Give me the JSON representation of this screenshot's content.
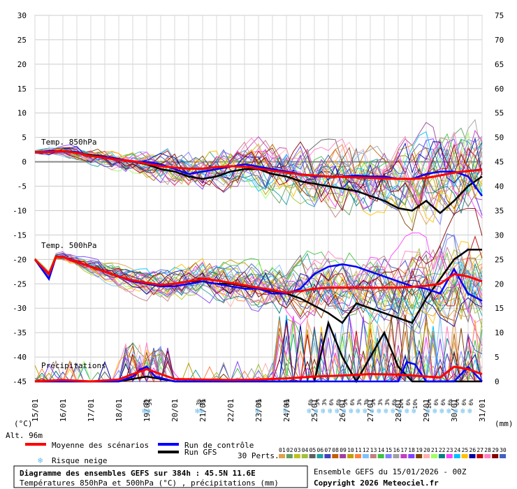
{
  "chart_data": {
    "type": "line",
    "title": "Diagramme des ensembles GEFS sur 384h : 45.5N 11.6E",
    "subtitle": "Températures 850hPa et 500hPa (°C) , précipitations (mm)",
    "run_info": "Ensemble GEFS du 15/01/2026 - 00Z",
    "copyright": "Copyright 2026 Meteociel.fr",
    "altitude": "Alt. 96m",
    "left_axis_unit": "(°C)",
    "right_axis_unit": "(mm)",
    "left_axis_ticks": [
      30,
      25,
      20,
      15,
      10,
      5,
      0,
      -5,
      -10,
      -15,
      -20,
      -25,
      -30,
      -35,
      -40,
      -45
    ],
    "right_axis_ticks": [
      75,
      70,
      65,
      60,
      55,
      50,
      45,
      40,
      35,
      30,
      25,
      20,
      15,
      10,
      5,
      0
    ],
    "ylim_temp": [
      -45,
      30
    ],
    "ylim_precip": [
      0,
      75
    ],
    "x_days": [
      "15/01",
      "16/01",
      "17/01",
      "18/01",
      "19/01",
      "20/01",
      "21/01",
      "22/01",
      "23/01",
      "24/01",
      "25/01",
      "26/01",
      "27/01",
      "28/01",
      "29/01",
      "30/01",
      "31/01"
    ],
    "x_day_index": [
      0,
      1,
      2,
      3,
      4,
      5,
      6,
      7,
      8,
      9,
      10,
      11,
      12,
      13,
      14,
      15,
      16
    ],
    "panel_labels": {
      "t850": "Temp. 850hPa",
      "t500": "Temp. 500hPa",
      "precip": "Précipitations"
    },
    "grid": true,
    "legend_position": "bottom",
    "legend": {
      "mean": "Moyenne des scénarios",
      "control": "Run de contrôle",
      "gfs": "Run GFS",
      "snow": "Risque neige",
      "perts": "30 Perts."
    },
    "colors": {
      "mean": "#ff0000",
      "control": "#0000ff",
      "gfs": "#000000",
      "snow": "#66bbee"
    },
    "pert_labels": [
      "01",
      "02",
      "03",
      "04",
      "05",
      "06",
      "07",
      "08",
      "09",
      "10",
      "11",
      "12",
      "13",
      "14",
      "15",
      "16",
      "17",
      "18",
      "19",
      "20",
      "21",
      "22",
      "23",
      "24",
      "25",
      "26",
      "27",
      "28",
      "29",
      "30"
    ],
    "pert_colors": [
      "#e0a050",
      "#60a060",
      "#c0c020",
      "#a0c040",
      "#606060",
      "#20a0a0",
      "#4040c0",
      "#c06000",
      "#a040a0",
      "#c0a000",
      "#ff8040",
      "#80c0ff",
      "#c08080",
      "#40c040",
      "#8080ff",
      "#a0a0a0",
      "#c040c0",
      "#8040ff",
      "#804000",
      "#ffb0b0",
      "#a0ff60",
      "#008080",
      "#ff40ff",
      "#00c0ff",
      "#ffc000",
      "#0000a0",
      "#c00000",
      "#ff80c0",
      "#800000",
      "#4060c0"
    ],
    "snow_markers": [
      {
        "day": 3.95,
        "label": "3%"
      },
      {
        "day": 4.1,
        "label": "3%"
      },
      {
        "day": 5.85,
        "label": "3%"
      },
      {
        "day": 6.0,
        "label": "3%"
      },
      {
        "day": 8.0,
        "label": "3%"
      },
      {
        "day": 9.0,
        "label": "6%"
      },
      {
        "day": 9.85,
        "label": "6%"
      },
      {
        "day": 10.1,
        "label": "3%"
      },
      {
        "day": 10.35,
        "label": "3%"
      },
      {
        "day": 10.6,
        "label": "6%"
      },
      {
        "day": 10.85,
        "label": "6%"
      },
      {
        "day": 11.1,
        "label": "3%"
      },
      {
        "day": 11.35,
        "label": "6%"
      },
      {
        "day": 11.6,
        "label": "3%"
      },
      {
        "day": 11.85,
        "label": "3%"
      },
      {
        "day": 12.1,
        "label": "3%"
      },
      {
        "day": 12.35,
        "label": "3%"
      },
      {
        "day": 12.6,
        "label": "3%"
      },
      {
        "day": 12.85,
        "label": "6%"
      },
      {
        "day": 13.1,
        "label": "10%"
      },
      {
        "day": 13.35,
        "label": "6%"
      },
      {
        "day": 13.6,
        "label": "10%"
      },
      {
        "day": 14.1,
        "label": "10%"
      },
      {
        "day": 14.35,
        "label": "6%"
      },
      {
        "day": 14.6,
        "label": "6%"
      },
      {
        "day": 14.85,
        "label": "6%"
      },
      {
        "day": 15.1,
        "label": "6%"
      },
      {
        "day": 15.35,
        "label": "6%"
      },
      {
        "day": 15.6,
        "label": "6%"
      }
    ],
    "series": [
      {
        "name": "Moyenne des scénarios",
        "panel": "t850",
        "x": [
          0,
          0.5,
          1,
          1.5,
          2,
          2.5,
          3,
          3.5,
          4,
          4.5,
          5,
          5.5,
          6,
          6.5,
          7,
          7.5,
          8,
          8.5,
          9,
          9.5,
          10,
          10.5,
          11,
          11.5,
          12,
          12.5,
          13,
          13.5,
          14,
          14.5,
          15,
          15.5,
          16
        ],
        "values": [
          2,
          2,
          2.2,
          1.8,
          1.2,
          0.8,
          0.4,
          0.1,
          -0.4,
          -0.9,
          -1.2,
          -1.4,
          -1.4,
          -1.1,
          -0.9,
          -1,
          -1.4,
          -1.8,
          -2.2,
          -2.6,
          -2.8,
          -3,
          -3.1,
          -3.2,
          -3.3,
          -3.4,
          -3.5,
          -3.5,
          -3.3,
          -2.8,
          -2.2,
          -1.9,
          -1.6
        ]
      },
      {
        "name": "Run de contrôle",
        "panel": "t850",
        "x": [
          0,
          0.5,
          1,
          1.5,
          2,
          2.5,
          3,
          3.5,
          4,
          4.5,
          5,
          5.5,
          6,
          6.5,
          7,
          7.5,
          8,
          8.5,
          9,
          9.5,
          10,
          10.5,
          11,
          11.5,
          12,
          12.5,
          13,
          13.5,
          14,
          14.5,
          15,
          15.5,
          16
        ],
        "values": [
          2,
          2.2,
          2.2,
          2,
          1.2,
          1,
          0.6,
          0,
          0,
          -0.5,
          -1.5,
          -2.5,
          -2,
          -1.5,
          -1,
          -0.5,
          -1,
          -1.5,
          -2,
          -2.5,
          -3,
          -3,
          -3,
          -2.8,
          -3,
          -3,
          -3.5,
          -3.5,
          -2.5,
          -2,
          -2,
          -3,
          -7
        ]
      },
      {
        "name": "Run GFS",
        "panel": "t850",
        "x": [
          0,
          0.5,
          1,
          1.5,
          2,
          2.5,
          3,
          3.5,
          4,
          4.5,
          5,
          5.5,
          6,
          6.5,
          7,
          7.5,
          8,
          8.5,
          9,
          9.5,
          10,
          10.5,
          11,
          11.5,
          12,
          12.5,
          13,
          13.5,
          14,
          14.5,
          15,
          15.5,
          16
        ],
        "values": [
          2,
          2,
          2.2,
          1.8,
          1.4,
          1,
          0.6,
          0,
          -0.5,
          -1.5,
          -2,
          -3,
          -3.5,
          -3,
          -2,
          -1.5,
          -1.5,
          -2.5,
          -3,
          -4,
          -4.5,
          -5,
          -5.5,
          -6,
          -7,
          -8,
          -9.5,
          -10,
          -8,
          -10.5,
          -8,
          -5,
          -3
        ]
      },
      {
        "name": "Moyenne des scénarios",
        "panel": "t500",
        "x": [
          0,
          0.25,
          0.5,
          0.75,
          1,
          1.5,
          2,
          2.5,
          3,
          3.5,
          4,
          4.5,
          5,
          5.5,
          6,
          6.5,
          7,
          7.5,
          8,
          8.5,
          9,
          9.5,
          10,
          10.5,
          11,
          11.5,
          12,
          12.5,
          13,
          13.5,
          14,
          14.5,
          15,
          15.5,
          16
        ],
        "values": [
          -20,
          -21.5,
          -23,
          -19.5,
          -19.5,
          -20.5,
          -21.5,
          -22.5,
          -23.5,
          -24.3,
          -24.8,
          -25.2,
          -25,
          -24.5,
          -24,
          -24.3,
          -24.8,
          -25.3,
          -25.8,
          -26.3,
          -26.8,
          -26.5,
          -26,
          -25.8,
          -25.8,
          -25.8,
          -25.8,
          -25.8,
          -25.8,
          -25.6,
          -25.4,
          -25,
          -23,
          -23.5,
          -24.5
        ]
      },
      {
        "name": "Run de contrôle",
        "panel": "t500",
        "x": [
          0,
          0.25,
          0.5,
          0.75,
          1,
          1.5,
          2,
          2.5,
          3,
          3.5,
          4,
          4.5,
          5,
          5.5,
          6,
          6.5,
          7,
          7.5,
          8,
          8.5,
          9,
          9.5,
          10,
          10.5,
          11,
          11.5,
          12,
          12.5,
          13,
          13.5,
          14,
          14.5,
          15,
          15.5,
          16
        ],
        "values": [
          -20,
          -22,
          -24,
          -19.5,
          -19.5,
          -20.5,
          -21.5,
          -22.5,
          -23.5,
          -24.5,
          -25,
          -25.5,
          -25.5,
          -25,
          -24.5,
          -25,
          -25.5,
          -26,
          -26,
          -27,
          -27,
          -26,
          -23,
          -21.5,
          -21,
          -21.5,
          -22.5,
          -23.5,
          -24.5,
          -25.5,
          -26,
          -27,
          -22,
          -27,
          -28.5
        ]
      },
      {
        "name": "Run GFS",
        "panel": "t500",
        "x": [
          0,
          0.25,
          0.5,
          0.75,
          1,
          1.5,
          2,
          2.5,
          3,
          3.5,
          4,
          4.5,
          5,
          5.5,
          6,
          6.5,
          7,
          7.5,
          8,
          8.5,
          9,
          9.5,
          10,
          10.5,
          11,
          11.5,
          12,
          12.5,
          13,
          13.5,
          14,
          14.5,
          15,
          15.5,
          16
        ],
        "values": [
          -20,
          -22,
          -24,
          -19.5,
          -19.5,
          -20.5,
          -21.5,
          -22.5,
          -23.5,
          -24.5,
          -25,
          -25.5,
          -25,
          -24.5,
          -24.5,
          -25,
          -25,
          -25.5,
          -26,
          -26.5,
          -27,
          -28,
          -29.5,
          -31,
          -33,
          -29,
          -30,
          -31,
          -32,
          -33,
          -28,
          -24,
          -20,
          -18,
          -18
        ]
      },
      {
        "name": "Moyenne des scénarios",
        "panel": "precip",
        "x": [
          0,
          1,
          2,
          3,
          3.5,
          4,
          4.5,
          5,
          6,
          7,
          8,
          9,
          10,
          11,
          12,
          13,
          14,
          14.5,
          15,
          15.5,
          16
        ],
        "values": [
          0,
          0.3,
          0,
          0.4,
          1.5,
          2.5,
          1.5,
          0.5,
          0.4,
          0.3,
          0.4,
          0.6,
          1,
          1.2,
          1.5,
          1.4,
          1,
          0.8,
          3,
          2.5,
          1.5
        ]
      },
      {
        "name": "Run de contrôle",
        "panel": "precip",
        "x": [
          0,
          1,
          2,
          3,
          3.5,
          3.8,
          4,
          4.3,
          5,
          6,
          7,
          8,
          9,
          10,
          11,
          11.5,
          12,
          13,
          13.3,
          13.6,
          14,
          15,
          15.5,
          16
        ],
        "values": [
          0,
          0,
          0,
          0,
          1,
          2.5,
          3,
          1,
          0,
          0,
          0,
          0,
          0,
          0,
          0,
          0,
          0,
          0,
          4,
          3.5,
          0,
          0,
          3,
          0
        ]
      },
      {
        "name": "Run GFS",
        "panel": "precip",
        "x": [
          0,
          1,
          2,
          3,
          4,
          5,
          6,
          7,
          8,
          9,
          10,
          10.5,
          11,
          11.5,
          12,
          12.5,
          13,
          13.5,
          14,
          14.5,
          15,
          15.5,
          16
        ],
        "values": [
          0,
          0,
          0,
          0,
          1,
          0,
          0,
          0,
          0,
          0,
          0,
          12,
          5,
          0,
          5,
          10,
          3,
          0,
          0,
          0,
          0,
          0,
          0
        ]
      }
    ]
  }
}
